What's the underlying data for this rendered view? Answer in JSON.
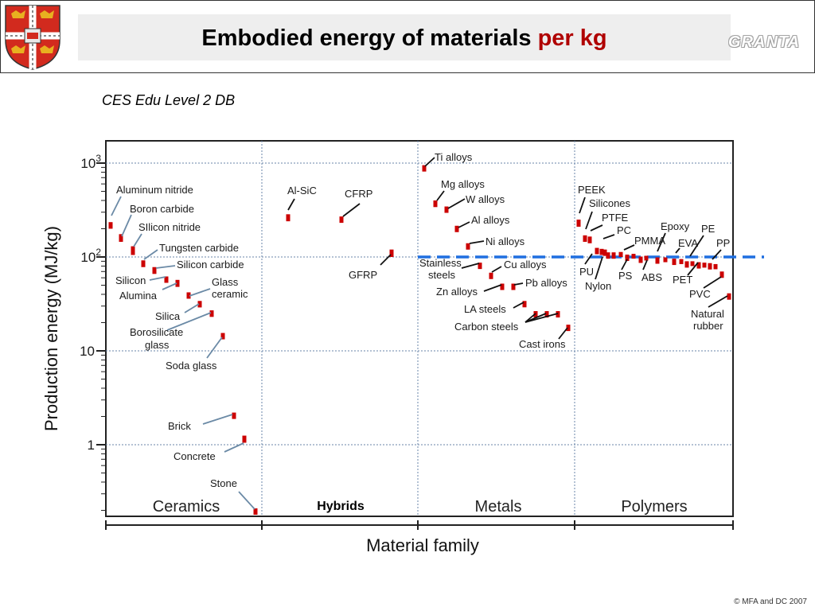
{
  "header": {
    "title_main": "Embodied energy of materials",
    "title_accent": "per kg",
    "logo": "GRANTA"
  },
  "subtitle": "CES Edu Level 2 DB",
  "footer": "© MFA  and DC 2007",
  "colors": {
    "bar": "#cc0000",
    "reference_line": "#1f6fe0",
    "grid": "#6a86a8",
    "accent": "#b00000"
  },
  "chart_data": {
    "type": "range",
    "xlabel": "Material family",
    "ylabel": "Production energy (MJ/kg)",
    "y_scale": "log",
    "ylim": [
      0.15,
      1500
    ],
    "yticks": [
      {
        "v": 1000,
        "b": "10",
        "e": "3"
      },
      {
        "v": 100,
        "b": "10",
        "e": "2"
      },
      {
        "v": 10,
        "b": "10",
        "e": ""
      },
      {
        "v": 1,
        "b": "1",
        "e": ""
      }
    ],
    "grid": true,
    "reference_line": 100,
    "families": [
      "Ceramics",
      "Hybrids",
      "Metals",
      "Polymers"
    ],
    "series": [
      {
        "label": "Aluminum nitride",
        "family": "Ceramics",
        "min": 200,
        "max": 235
      },
      {
        "label": "Boron carbide",
        "family": "Ceramics",
        "min": 145,
        "max": 175
      },
      {
        "label": "SIlicon nitride",
        "family": "Ceramics",
        "min": 105,
        "max": 130
      },
      {
        "label": "Tungsten carbide",
        "family": "Ceramics",
        "min": 78,
        "max": 92
      },
      {
        "label": "Silicon carbide",
        "family": "Ceramics",
        "min": 66,
        "max": 78
      },
      {
        "label": "Silicon",
        "family": "Ceramics",
        "min": 56,
        "max": 62
      },
      {
        "label": "Alumina",
        "family": "Ceramics",
        "min": 48,
        "max": 57
      },
      {
        "label": "Glass ceramic",
        "family": "Ceramics",
        "min": 36,
        "max": 42
      },
      {
        "label": "Silica",
        "family": "Ceramics",
        "min": 29,
        "max": 34
      },
      {
        "label": "Borosilicate glass",
        "family": "Ceramics",
        "min": 23,
        "max": 27
      },
      {
        "label": "Soda glass",
        "family": "Ceramics",
        "min": 13.5,
        "max": 15.5
      },
      {
        "label": "Brick",
        "family": "Ceramics",
        "min": 1.9,
        "max": 2.2
      },
      {
        "label": "Concrete",
        "family": "Ceramics",
        "min": 1.05,
        "max": 1.25
      },
      {
        "label": "Stone",
        "family": "Ceramics",
        "min": 0.18,
        "max": 0.21
      },
      {
        "label": "Al-SiC",
        "family": "Hybrids",
        "min": 240,
        "max": 285
      },
      {
        "label": "CFRP",
        "family": "Hybrids",
        "min": 240,
        "max": 270
      },
      {
        "label": "GFRP",
        "family": "Hybrids",
        "min": 100,
        "max": 120
      },
      {
        "label": "Ti alloys",
        "family": "Metals",
        "min": 850,
        "max": 950
      },
      {
        "label": "Mg alloys",
        "family": "Metals",
        "min": 340,
        "max": 400
      },
      {
        "label": "W alloys",
        "family": "Metals",
        "min": 310,
        "max": 345
      },
      {
        "label": "Al alloys",
        "family": "Metals",
        "min": 190,
        "max": 215
      },
      {
        "label": "Ni alloys",
        "family": "Metals",
        "min": 125,
        "max": 140
      },
      {
        "label": "Stainless steels",
        "family": "Metals",
        "min": 77,
        "max": 87
      },
      {
        "label": "Cu alloys",
        "family": "Metals",
        "min": 60,
        "max": 68
      },
      {
        "label": "Zn alloys",
        "family": "Metals",
        "min": 46,
        "max": 52
      },
      {
        "label": "Pb alloys",
        "family": "Metals",
        "min": 46,
        "max": 52
      },
      {
        "label": "LA steels",
        "family": "Metals",
        "min": 30,
        "max": 34
      },
      {
        "label": "Carbon steels",
        "family": "Metals",
        "min": 23,
        "max": 26.5
      },
      {
        "label": "Cast irons",
        "family": "Metals",
        "min": 16.5,
        "max": 19
      },
      {
        "label": "PEEK",
        "family": "Polymers",
        "min": 210,
        "max": 250
      },
      {
        "label": "Silicones",
        "family": "Polymers",
        "min": 145,
        "max": 170
      },
      {
        "label": "PTFE",
        "family": "Polymers",
        "min": 140,
        "max": 165
      },
      {
        "label": "PC",
        "family": "Polymers",
        "min": 112,
        "max": 125
      },
      {
        "label": "Nylon",
        "family": "Polymers",
        "min": 108,
        "max": 120
      },
      {
        "label": "PMMA",
        "family": "Polymers",
        "min": 100,
        "max": 112
      },
      {
        "label": "PU",
        "family": "Polymers",
        "min": 100,
        "max": 112
      },
      {
        "label": "PS",
        "family": "Polymers",
        "min": 95,
        "max": 106
      },
      {
        "label": "ABS",
        "family": "Polymers",
        "min": 91,
        "max": 101
      },
      {
        "label": "Epoxy",
        "family": "Polymers",
        "min": 88,
        "max": 99
      },
      {
        "label": "EVA",
        "family": "Polymers",
        "min": 85,
        "max": 96
      },
      {
        "label": "PE",
        "family": "Polymers",
        "min": 80,
        "max": 90
      },
      {
        "label": "PET",
        "family": "Polymers",
        "min": 78,
        "max": 88
      },
      {
        "label": "PP",
        "family": "Polymers",
        "min": 76,
        "max": 86
      },
      {
        "label": "PVC",
        "family": "Polymers",
        "min": 62,
        "max": 70
      },
      {
        "label": "Natural rubber",
        "family": "Polymers",
        "min": 36,
        "max": 41
      }
    ]
  }
}
